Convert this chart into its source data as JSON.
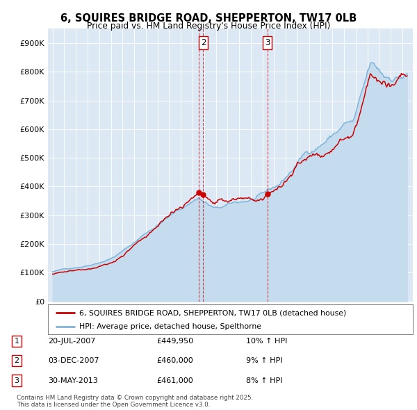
{
  "title": "6, SQUIRES BRIDGE ROAD, SHEPPERTON, TW17 0LB",
  "subtitle": "Price paid vs. HM Land Registry's House Price Index (HPI)",
  "background_color": "#ffffff",
  "plot_bg_color": "#dce9f5",
  "hpi_color": "#7fb4d8",
  "hpi_fill_color": "#c5dcee",
  "price_color": "#cc0000",
  "vline_color": "#cc0000",
  "ylim": [
    0,
    950000
  ],
  "yticks": [
    0,
    100000,
    200000,
    300000,
    400000,
    500000,
    600000,
    700000,
    800000,
    900000
  ],
  "legend_label_price": "6, SQUIRES BRIDGE ROAD, SHEPPERTON, TW17 0LB (detached house)",
  "legend_label_hpi": "HPI: Average price, detached house, Spelthorne",
  "transaction1_label": "1",
  "transaction1_date": "20-JUL-2007",
  "transaction1_price": "£449,950",
  "transaction1_hpi": "10% ↑ HPI",
  "transaction1_x": 2007.54,
  "transaction2_label": "2",
  "transaction2_date": "03-DEC-2007",
  "transaction2_price": "£460,000",
  "transaction2_hpi": "9% ↑ HPI",
  "transaction2_x": 2007.92,
  "transaction3_label": "3",
  "transaction3_date": "30-MAY-2013",
  "transaction3_price": "£461,000",
  "transaction3_hpi": "8% ↑ HPI",
  "transaction3_x": 2013.41,
  "footer": "Contains HM Land Registry data © Crown copyright and database right 2025.\nThis data is licensed under the Open Government Licence v3.0."
}
